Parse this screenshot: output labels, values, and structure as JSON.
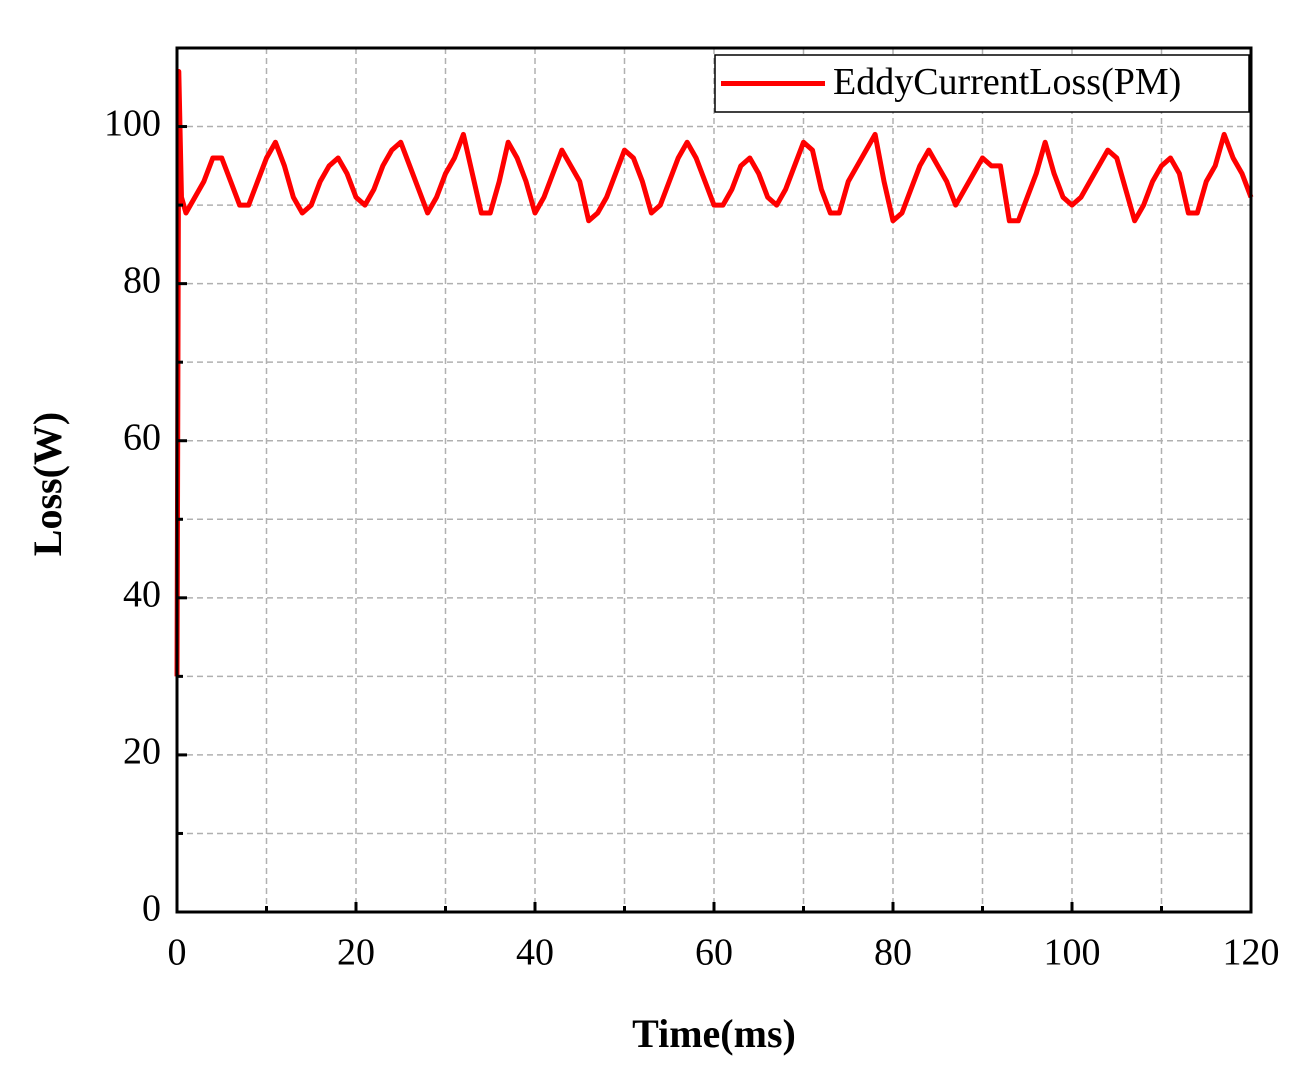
{
  "chart_data": {
    "type": "line",
    "xlabel": "Time(ms)",
    "ylabel": "Loss(W)",
    "xlim": [
      0,
      120
    ],
    "ylim": [
      0,
      110
    ],
    "xticks": [
      0,
      20,
      40,
      60,
      80,
      100,
      120
    ],
    "yticks": [
      0,
      20,
      40,
      60,
      80,
      100
    ],
    "xminorticks": [
      10,
      30,
      50,
      70,
      90,
      110
    ],
    "yminorticks": [
      10,
      30,
      50,
      70,
      90
    ],
    "grid": true,
    "legend": "upper right",
    "x": [
      0,
      0.2,
      0.5,
      1,
      2,
      3,
      4,
      5,
      6,
      7,
      8,
      9,
      10,
      11,
      12,
      13,
      14,
      15,
      16,
      17,
      18,
      19,
      20,
      21,
      22,
      23,
      24,
      25,
      26,
      27,
      28,
      29,
      30,
      31,
      32,
      33,
      34,
      35,
      36,
      37,
      38,
      39,
      40,
      41,
      42,
      43,
      44,
      45,
      46,
      47,
      48,
      49,
      50,
      51,
      52,
      53,
      54,
      55,
      56,
      57,
      58,
      59,
      60,
      61,
      62,
      63,
      64,
      65,
      66,
      67,
      68,
      69,
      70,
      71,
      72,
      73,
      74,
      75,
      76,
      77,
      78,
      79,
      80,
      81,
      82,
      83,
      84,
      85,
      86,
      87,
      88,
      89,
      90,
      91,
      92,
      93,
      94,
      95,
      96,
      97,
      98,
      99,
      100,
      101,
      102,
      103,
      104,
      105,
      106,
      107,
      108,
      109,
      110,
      111,
      112,
      113,
      114,
      115,
      116,
      117,
      118,
      119,
      120
    ],
    "series": [
      {
        "name": "EddyCurrentLoss(PM)",
        "color": "#ff0000",
        "values": [
          30,
          107,
          91,
          89,
          91,
          93,
          96,
          96,
          93,
          90,
          90,
          93,
          96,
          98,
          95,
          91,
          89,
          90,
          93,
          95,
          96,
          94,
          91,
          90,
          92,
          95,
          97,
          98,
          95,
          92,
          89,
          91,
          94,
          96,
          99,
          94,
          89,
          89,
          93,
          98,
          96,
          93,
          89,
          91,
          94,
          97,
          95,
          93,
          88,
          89,
          91,
          94,
          97,
          96,
          93,
          89,
          90,
          93,
          96,
          98,
          96,
          93,
          90,
          90,
          92,
          95,
          96,
          94,
          91,
          90,
          92,
          95,
          98,
          97,
          92,
          89,
          89,
          93,
          95,
          97,
          99,
          93,
          88,
          89,
          92,
          95,
          97,
          95,
          93,
          90,
          92,
          94,
          96,
          95,
          95,
          88,
          88,
          91,
          94,
          98,
          94,
          91,
          90,
          91,
          93,
          95,
          97,
          96,
          92,
          88,
          90,
          93,
          95,
          96,
          94,
          89,
          89,
          93,
          95,
          99,
          96,
          94,
          91
        ]
      }
    ]
  }
}
